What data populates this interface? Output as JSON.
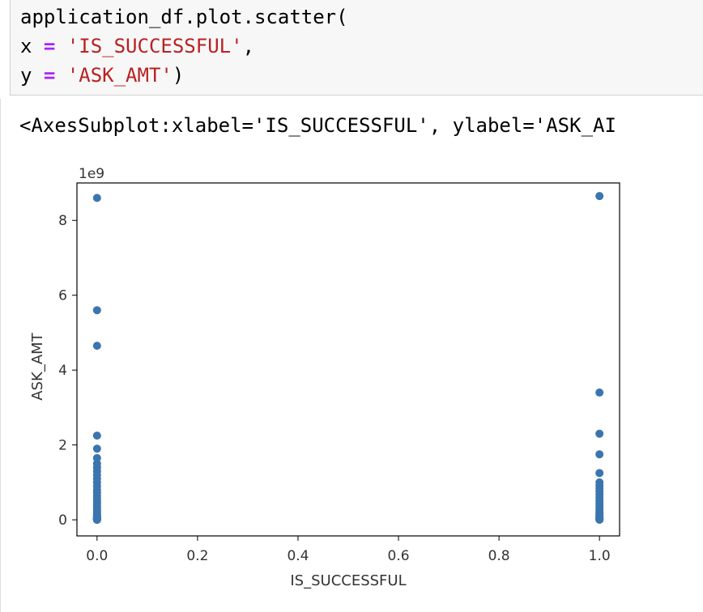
{
  "code_cell": {
    "line1": "application_df.plot.scatter(",
    "line2_var": "x",
    "line2_op": "=",
    "line2_str": "'IS_SUCCESSFUL'",
    "line2_tail": ",",
    "line3_var": "y",
    "line3_op": "=",
    "line3_str": "'ASK_AMT'",
    "line3_tail": ")"
  },
  "output": {
    "repr": "<AxesSubplot:xlabel='IS_SUCCESSFUL', ylabel='ASK_AI"
  },
  "colors": {
    "marker": "#3b75af",
    "code_bg": "#f7f7f7",
    "string": "#ba2121",
    "operator": "#aa22ff"
  },
  "chart_data": {
    "type": "scatter",
    "xlabel": "IS_SUCCESSFUL",
    "ylabel": "ASK_AMT",
    "y_offset_label": "1e9",
    "xlim": [
      -0.04,
      1.04
    ],
    "ylim": [
      -0.43,
      9.0
    ],
    "xticks": [
      0.0,
      0.2,
      0.4,
      0.6,
      0.8,
      1.0
    ],
    "xtick_labels": [
      "0.0",
      "0.2",
      "0.4",
      "0.6",
      "0.8",
      "1.0"
    ],
    "yticks": [
      0,
      2,
      4,
      6,
      8
    ],
    "ytick_labels": [
      "0",
      "2",
      "4",
      "6",
      "8"
    ],
    "grid": false,
    "series": [
      {
        "x": [
          0,
          0,
          0,
          0,
          0,
          0,
          0,
          0,
          0,
          0,
          0,
          0,
          0,
          0,
          0,
          0,
          0,
          0,
          0,
          0,
          0,
          0,
          0,
          0,
          0,
          0,
          0,
          0,
          0,
          0,
          0,
          0,
          0,
          0,
          0,
          0,
          0,
          0,
          0,
          0,
          0
        ],
        "y": [
          8.6,
          5.6,
          4.65,
          2.25,
          1.9,
          1.65,
          1.5,
          1.4,
          1.3,
          1.2,
          1.1,
          1.0,
          0.9,
          0.8,
          0.72,
          0.64,
          0.56,
          0.5,
          0.44,
          0.38,
          0.33,
          0.28,
          0.24,
          0.2,
          0.16,
          0.13,
          0.1,
          0.08,
          0.06,
          0.05,
          0.04,
          0.03,
          0.02,
          0.015,
          0.01,
          0.008,
          0.006,
          0.004,
          0.003,
          0.002,
          0.001
        ]
      },
      {
        "x": [
          1,
          1,
          1,
          1,
          1,
          1,
          1,
          1,
          1,
          1,
          1,
          1,
          1,
          1,
          1,
          1,
          1,
          1,
          1,
          1,
          1,
          1,
          1,
          1,
          1,
          1,
          1,
          1,
          1
        ],
        "y": [
          8.65,
          3.4,
          2.3,
          1.75,
          1.25,
          1.0,
          0.92,
          0.84,
          0.76,
          0.68,
          0.6,
          0.52,
          0.45,
          0.38,
          0.32,
          0.27,
          0.22,
          0.18,
          0.14,
          0.11,
          0.08,
          0.06,
          0.045,
          0.03,
          0.02,
          0.012,
          0.008,
          0.004,
          0.002
        ]
      }
    ]
  }
}
